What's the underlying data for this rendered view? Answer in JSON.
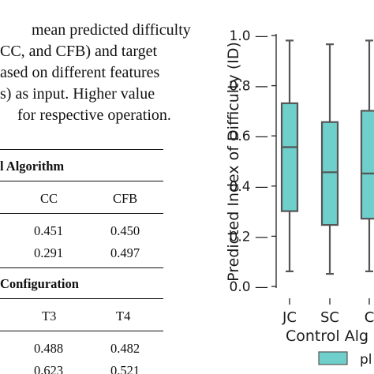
{
  "paragraph_lines": [
    "mean predicted difficulty",
    "CC, and CFB) and target",
    "ased on different features",
    "s) as input. Higher value",
    "for respective operation."
  ],
  "table": {
    "section1_heading": "l Algorithm",
    "section1_columns": [
      "CC",
      "CFB"
    ],
    "section1_rows": [
      [
        "0.451",
        "0.450"
      ],
      [
        "0.291",
        "0.497"
      ]
    ],
    "section2_heading": "Configuration",
    "section2_columns": [
      "T3",
      "T4"
    ],
    "section2_rows": [
      [
        "0.488",
        "0.482"
      ],
      [
        "0.623",
        "0.521"
      ]
    ]
  },
  "chart_data": {
    "type": "box",
    "ylabel": "Predicted Index of Difficulty (ID)",
    "xlabel": "Control Alg",
    "ylim": [
      0.0,
      1.0
    ],
    "yticks": [
      "0.0",
      "0.2",
      "0.4",
      "0.6",
      "0.8",
      "1.0"
    ],
    "categories": [
      "JC",
      "SC",
      "C"
    ],
    "boxes": [
      {
        "category": "JC",
        "whisker_low": 0.06,
        "q1": 0.3,
        "median": 0.555,
        "q3": 0.73,
        "whisker_high": 0.98
      },
      {
        "category": "SC",
        "whisker_low": 0.05,
        "q1": 0.245,
        "median": 0.455,
        "q3": 0.655,
        "whisker_high": 0.965
      },
      {
        "category": "C",
        "whisker_low": 0.06,
        "q1": 0.27,
        "median": 0.45,
        "q3": 0.7,
        "whisker_high": 0.98
      }
    ],
    "legend_entry": "pl",
    "colors": {
      "box_fill": "#6ecfcb",
      "box_edge": "#555555"
    }
  }
}
